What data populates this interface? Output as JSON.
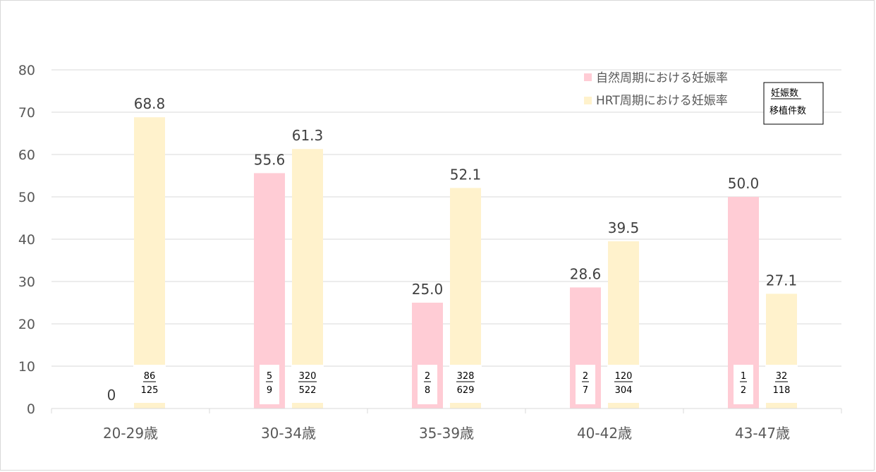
{
  "chart_data": {
    "type": "bar",
    "categories": [
      "20-29歳",
      "30-34歳",
      "35-39歳",
      "40-42歳",
      "43-47歳"
    ],
    "series": [
      {
        "name": "自然周期における妊娠率",
        "color": "#FFCCD5",
        "values": [
          0,
          55.6,
          25.0,
          28.6,
          50.0
        ],
        "labels": [
          "0",
          "55.6",
          "25.0",
          "28.6",
          "50.0"
        ],
        "numerators": [
          "",
          "5",
          "2",
          "2",
          "1"
        ],
        "denominators": [
          "",
          "9",
          "8",
          "7",
          "2"
        ]
      },
      {
        "name": "HRT周期における妊娠率",
        "color": "#FFF2CC",
        "values": [
          68.8,
          61.3,
          52.1,
          39.5,
          27.1
        ],
        "labels": [
          "68.8",
          "61.3",
          "52.1",
          "39.5",
          "27.1"
        ],
        "numerators": [
          "86",
          "320",
          "328",
          "120",
          "32"
        ],
        "denominators": [
          "125",
          "522",
          "629",
          "304",
          "118"
        ]
      }
    ],
    "ylim": [
      0,
      80
    ],
    "yticks": [
      0,
      10,
      20,
      30,
      40,
      50,
      60,
      70,
      80
    ],
    "grid": true,
    "legend": "top-right",
    "key_box": {
      "numerator_label": "妊娠数",
      "denominator_label": "移植件数"
    }
  }
}
